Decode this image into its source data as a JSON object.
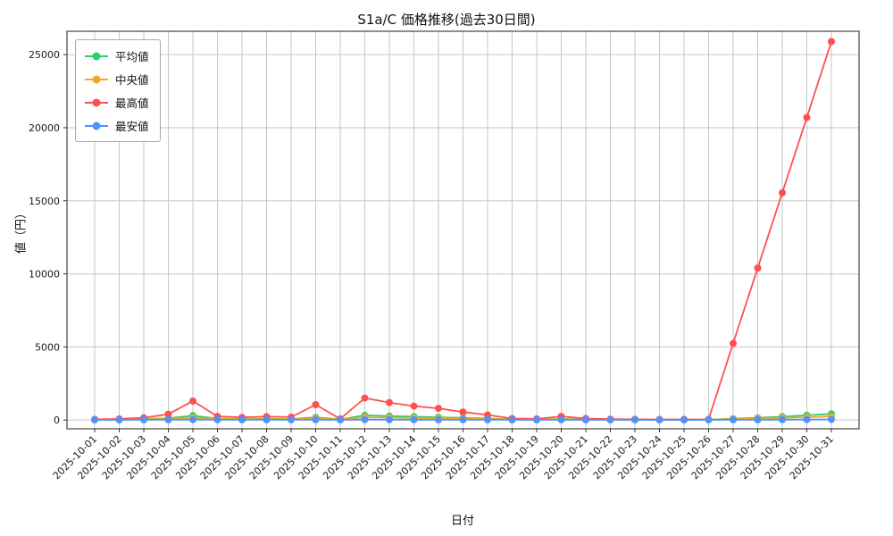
{
  "chart_data": {
    "type": "line",
    "title": "S1a/C 価格推移(過去30日間)",
    "xlabel": "日付",
    "ylabel": "値（円）",
    "grid": true,
    "legend_position": "upper left",
    "yticks": [
      0,
      5000,
      10000,
      15000,
      20000,
      25000
    ],
    "ylim": [
      -600,
      26600
    ],
    "x": [
      "2025-10-01",
      "2025-10-02",
      "2025-10-03",
      "2025-10-04",
      "2025-10-05",
      "2025-10-06",
      "2025-10-07",
      "2025-10-08",
      "2025-10-09",
      "2025-10-10",
      "2025-10-11",
      "2025-10-12",
      "2025-10-13",
      "2025-10-14",
      "2025-10-15",
      "2025-10-16",
      "2025-10-17",
      "2025-10-18",
      "2025-10-19",
      "2025-10-20",
      "2025-10-21",
      "2025-10-22",
      "2025-10-23",
      "2025-10-24",
      "2025-10-25",
      "2025-10-26",
      "2025-10-27",
      "2025-10-28",
      "2025-10-29",
      "2025-10-30",
      "2025-10-31"
    ],
    "series": [
      {
        "name": "平均値",
        "color": "#2ecc71",
        "values": [
          30,
          40,
          60,
          120,
          300,
          90,
          70,
          80,
          70,
          180,
          50,
          320,
          270,
          230,
          190,
          150,
          110,
          50,
          40,
          80,
          45,
          35,
          30,
          25,
          25,
          30,
          90,
          150,
          230,
          320,
          420
        ]
      },
      {
        "name": "中央値",
        "color": "#f5a623",
        "values": [
          20,
          30,
          45,
          80,
          150,
          65,
          55,
          60,
          50,
          100,
          35,
          190,
          160,
          140,
          115,
          95,
          75,
          40,
          30,
          55,
          35,
          28,
          25,
          20,
          20,
          25,
          60,
          95,
          140,
          190,
          250
        ]
      },
      {
        "name": "最高値",
        "color": "#ff5050",
        "values": [
          50,
          80,
          150,
          400,
          1300,
          250,
          180,
          230,
          200,
          1050,
          80,
          1500,
          1200,
          950,
          800,
          550,
          350,
          100,
          80,
          250,
          100,
          60,
          50,
          40,
          40,
          50,
          5250,
          10400,
          15550,
          20700,
          25900
        ]
      },
      {
        "name": "最安値",
        "color": "#4d94ff",
        "values": [
          10,
          10,
          15,
          20,
          30,
          20,
          15,
          15,
          15,
          20,
          10,
          30,
          25,
          25,
          20,
          20,
          15,
          10,
          10,
          15,
          10,
          10,
          10,
          8,
          8,
          10,
          15,
          20,
          25,
          30,
          40
        ]
      }
    ]
  }
}
